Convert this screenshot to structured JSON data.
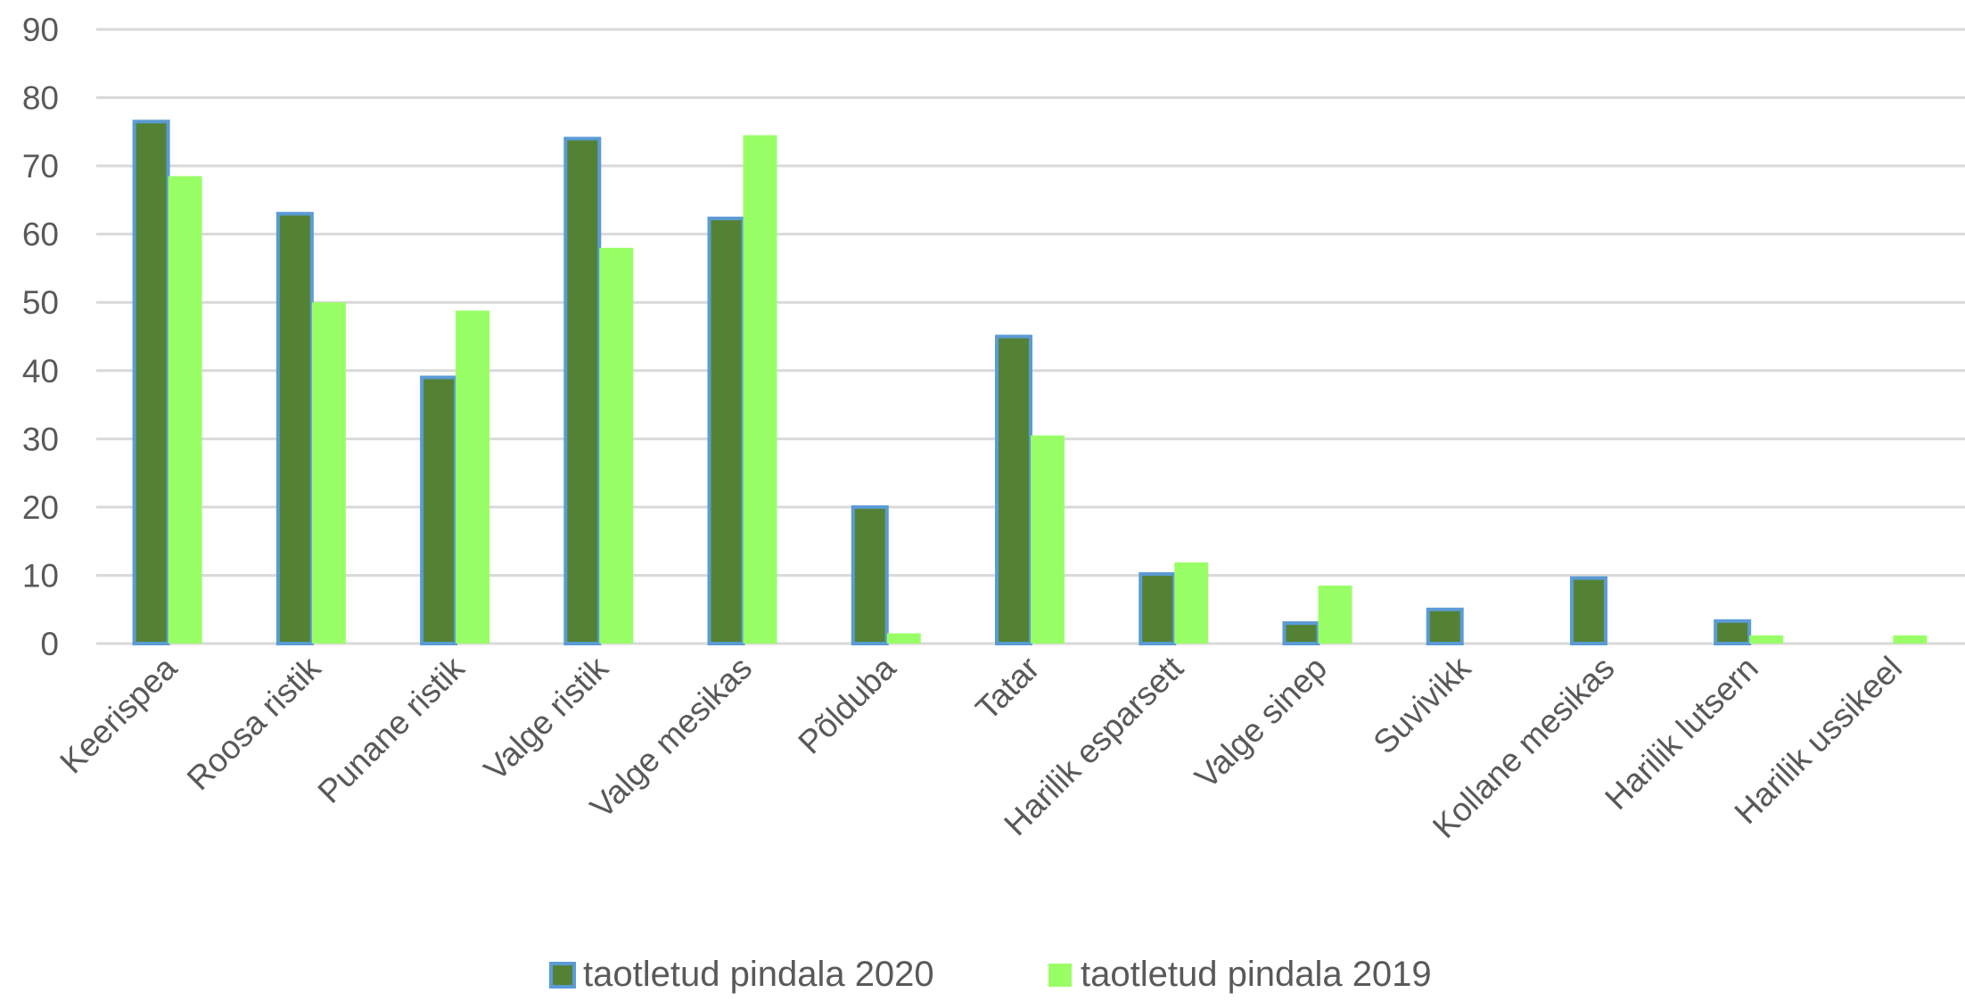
{
  "chart_data": {
    "type": "bar",
    "title": "",
    "xlabel": "",
    "ylabel": "",
    "ylim": [
      0,
      90
    ],
    "yticks": [
      0,
      10,
      20,
      30,
      40,
      50,
      60,
      70,
      80,
      90
    ],
    "grid": true,
    "legend_position": "bottom",
    "categories": [
      "Keerispea",
      "Roosa ristik",
      "Punane ristik",
      "Valge ristik",
      "Valge mesikas",
      "Põlduba",
      "Tatar",
      "Harilik esparsett",
      "Valge sinep",
      "Suvivikk",
      "Kollane mesikas",
      "Harilik lutsern",
      "Harilik ussikeel"
    ],
    "series": [
      {
        "name": "taotletud pindala 2020",
        "color": "#548235",
        "border": "#5b9bd5",
        "values": [
          76.5,
          63,
          39,
          74,
          62.3,
          20,
          45,
          10.2,
          3,
          5,
          9.6,
          3.3,
          0
        ]
      },
      {
        "name": "taotletud pindala 2019",
        "color": "#99ff66",
        "border": null,
        "values": [
          68.5,
          50,
          48.8,
          58,
          74.5,
          1.5,
          30.5,
          11.9,
          8.5,
          0,
          0,
          1.2,
          1.2
        ]
      }
    ]
  }
}
